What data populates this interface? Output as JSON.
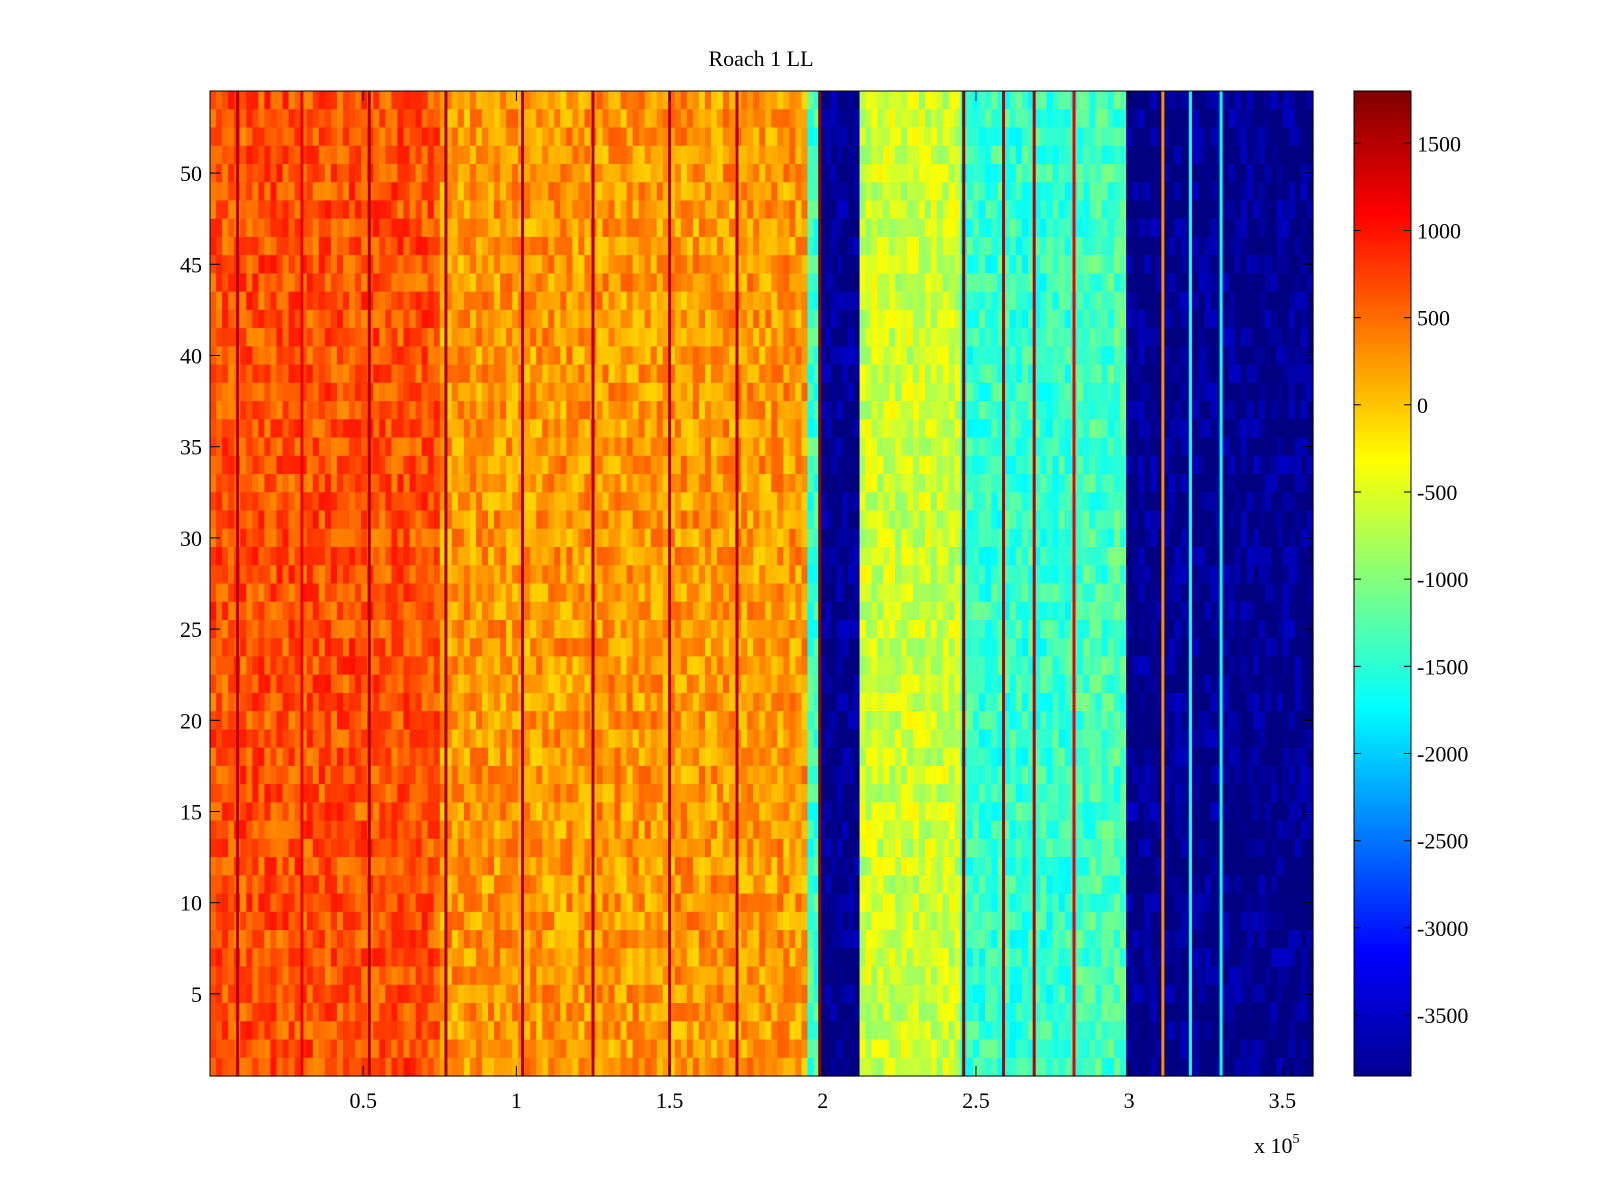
{
  "chart_data": {
    "type": "heatmap",
    "title": "Roach 1 LL",
    "xlabel": "",
    "ylabel": "",
    "x_exponent_label": "x 10",
    "x_exponent": "5",
    "xlim": [
      0,
      3.6
    ],
    "ylim": [
      0.5,
      54.5
    ],
    "xticks": [
      0.5,
      1,
      1.5,
      2,
      2.5,
      3,
      3.5
    ],
    "xtick_labels": [
      "0.5",
      "1",
      "1.5",
      "2",
      "2.5",
      "3",
      "3.5"
    ],
    "yticks": [
      5,
      10,
      15,
      20,
      25,
      30,
      35,
      40,
      45,
      50
    ],
    "ytick_labels": [
      "5",
      "10",
      "15",
      "20",
      "25",
      "30",
      "35",
      "40",
      "45",
      "50"
    ],
    "colorbar": {
      "colormap": "jet",
      "clim": [
        -3850,
        1800
      ],
      "ticks": [
        1500,
        1000,
        500,
        0,
        -500,
        -1000,
        -1500,
        -2000,
        -2500,
        -3000,
        -3500
      ],
      "tick_labels": [
        "1500",
        "1000",
        "500",
        "0",
        "-500",
        "-1000",
        "-1500",
        "-2000",
        "-2500",
        "-3000",
        "-3500"
      ]
    },
    "rows": 54,
    "column_bands": [
      {
        "x": [
          0.0,
          0.75
        ],
        "value": 650
      },
      {
        "x": [
          0.75,
          1.95
        ],
        "value": 250
      },
      {
        "x": [
          1.95,
          1.99
        ],
        "value": -1400
      },
      {
        "x": [
          1.99,
          2.12
        ],
        "value": -3800
      },
      {
        "x": [
          2.12,
          2.45
        ],
        "value": -600
      },
      {
        "x": [
          2.45,
          2.83
        ],
        "value": -1450
      },
      {
        "x": [
          2.83,
          2.99
        ],
        "value": -1350
      },
      {
        "x": [
          2.99,
          3.11
        ],
        "value": -3800
      },
      {
        "x": [
          3.11,
          3.6
        ],
        "value": -3800
      }
    ],
    "stripes": [
      {
        "x": 0.09,
        "value": 1500
      },
      {
        "x": 0.3,
        "value": 1200
      },
      {
        "x": 0.52,
        "value": 1500
      },
      {
        "x": 0.77,
        "value": 1600
      },
      {
        "x": 1.02,
        "value": 1500
      },
      {
        "x": 1.25,
        "value": 1500
      },
      {
        "x": 1.5,
        "value": 1500
      },
      {
        "x": 1.72,
        "value": 1500
      },
      {
        "x": 1.99,
        "value": 1700
      },
      {
        "x": 2.46,
        "value": 1700
      },
      {
        "x": 2.59,
        "value": 1500
      },
      {
        "x": 2.69,
        "value": 1500
      },
      {
        "x": 2.82,
        "value": 1200
      },
      {
        "x": 3.11,
        "value": 300
      },
      {
        "x": 3.2,
        "value": -1700
      },
      {
        "x": 3.3,
        "value": -1700
      }
    ]
  }
}
